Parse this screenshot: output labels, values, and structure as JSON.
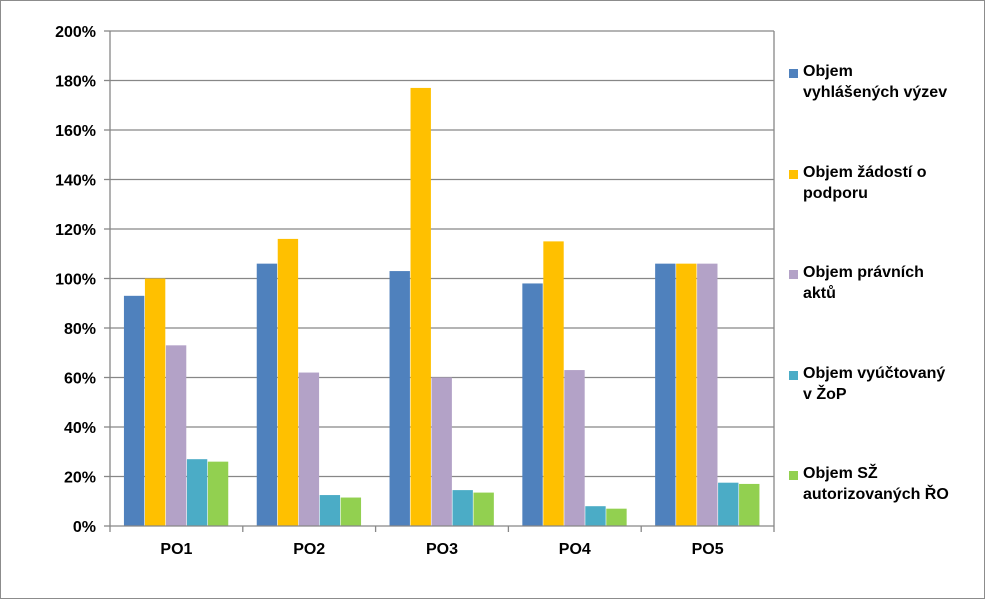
{
  "chart_data": {
    "type": "bar",
    "categories": [
      "PO1",
      "PO2",
      "PO3",
      "PO4",
      "PO5"
    ],
    "y_ticks": [
      "0%",
      "20%",
      "40%",
      "60%",
      "80%",
      "100%",
      "120%",
      "140%",
      "160%",
      "180%",
      "200%"
    ],
    "ylim": [
      0,
      200
    ],
    "grid": true,
    "legend_position": "right",
    "series": [
      {
        "name": "Objem vyhlášených výzev",
        "name_lines": [
          "Objem",
          "vyhlášených výzev"
        ],
        "color": "#4F81BD",
        "values": [
          93,
          106,
          103,
          98,
          106
        ]
      },
      {
        "name": "Objem žádostí o podporu",
        "name_lines": [
          "Objem žádostí o",
          "podporu"
        ],
        "color": "#FFC000",
        "values": [
          100,
          116,
          177,
          115,
          106
        ]
      },
      {
        "name": "Objem právních aktů",
        "name_lines": [
          "Objem právních",
          "aktů"
        ],
        "color": "#B3A2C7",
        "values": [
          73,
          62,
          60,
          63,
          106
        ]
      },
      {
        "name": "Objem vyúčtovaný v ŽoP",
        "name_lines": [
          "Objem vyúčtovaný",
          "v ŽoP"
        ],
        "color": "#4BACC6",
        "values": [
          27,
          12.5,
          14.5,
          8,
          17.5
        ]
      },
      {
        "name": "Objem SŽ autorizovaných ŘO",
        "name_lines": [
          "Objem SŽ",
          "autorizovaných ŘO"
        ],
        "color": "#92D050",
        "values": [
          26,
          11.5,
          13.5,
          7,
          17
        ]
      }
    ]
  }
}
